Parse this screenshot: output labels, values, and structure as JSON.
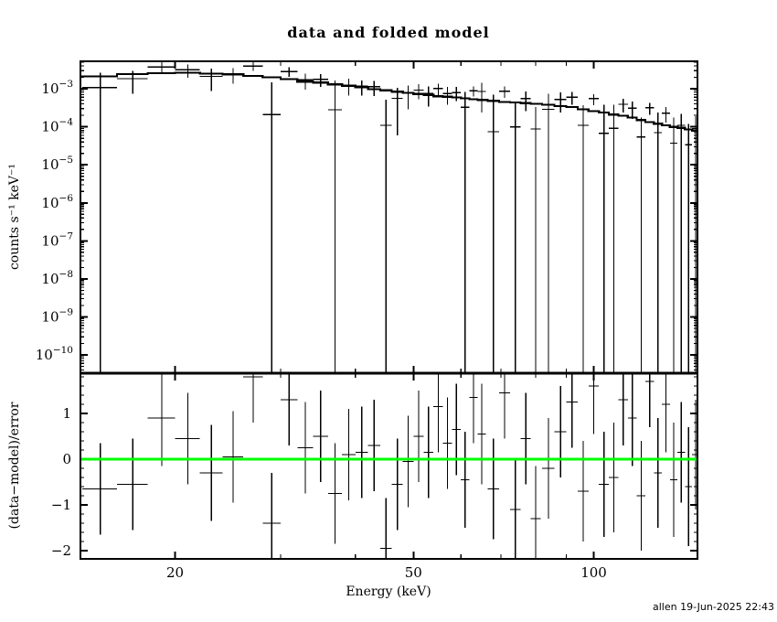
{
  "title": "data and folded model",
  "footer": "allen 19-Jun-2025 22:43",
  "colors": {
    "foreground": "#000000",
    "background": "#ffffff",
    "model_line": "#000000",
    "zero_line": "#00ff00"
  },
  "axes": {
    "x": {
      "label": "Energy (keV)",
      "scale": "log",
      "min": 13.9,
      "max": 149,
      "major_ticks": [
        20,
        50,
        100
      ],
      "tick_labels": [
        "20",
        "50",
        "100"
      ],
      "minor_ticks": [
        20,
        30,
        40,
        50,
        60,
        70,
        80,
        90,
        100
      ]
    },
    "top_y": {
      "label": "counts s⁻¹ keV⁻¹",
      "scale": "log",
      "min": 3.3e-11,
      "max": 0.0053,
      "decade_exponents": [
        -3,
        -4,
        -5,
        -6,
        -7,
        -8,
        -9,
        -10
      ]
    },
    "bottom_y": {
      "label": "(data−model)/error",
      "scale": "linear",
      "min": -2.18,
      "max": 1.88,
      "major_ticks": [
        1,
        0,
        -1,
        -2
      ],
      "tick_labels": [
        "1",
        "0",
        "−1",
        "−2"
      ],
      "minor_step": 0.2
    }
  },
  "chart_data": {
    "type": "scatter",
    "title": "data and folded model",
    "layout": "two stacked panels sharing log energy axis",
    "panels": [
      {
        "name": "spectrum",
        "ylabel": "counts s⁻¹ keV⁻¹",
        "yscale": "log",
        "series": [
          "binned data with x/y error bars",
          "folded model stepped line"
        ]
      },
      {
        "name": "residuals",
        "ylabel": "(data−model)/error",
        "yscale": "linear",
        "series": [
          "residual crosses",
          "zero line (green)"
        ]
      }
    ],
    "columns": [
      "energy_keV",
      "half_width_keV",
      "rate",
      "rate_err",
      "model_rate",
      "residual_sigma",
      "residual_err"
    ],
    "bins": [
      [
        15,
        1,
        0.00108,
        0.00158,
        0.00211,
        -0.65,
        1.0
      ],
      [
        17,
        1,
        0.00184,
        0.0011,
        0.00245,
        -0.55,
        1.0
      ],
      [
        19,
        1,
        0.00377,
        0.0013,
        0.0026,
        0.9,
        1.05
      ],
      [
        21,
        1,
        0.00316,
        0.00118,
        0.00263,
        0.45,
        1.0
      ],
      [
        23,
        1,
        0.00213,
        0.00125,
        0.00251,
        -0.3,
        1.05
      ],
      [
        25,
        1,
        0.00245,
        0.00108,
        0.0024,
        0.05,
        1.0
      ],
      [
        27,
        1,
        0.00398,
        0.00099,
        0.0022,
        1.8,
        1.0
      ],
      [
        29,
        1,
        0.00021,
        0.00128,
        0.002,
        -1.4,
        1.1
      ],
      [
        31,
        1,
        0.00285,
        0.00081,
        0.0018,
        1.3,
        1.0
      ],
      [
        33,
        1,
        0.00174,
        0.00078,
        0.00155,
        0.25,
        1.0
      ],
      [
        35,
        1,
        0.00178,
        0.00065,
        0.00146,
        0.5,
        1.0
      ],
      [
        37,
        1,
        0.00028,
        0.00137,
        0.00131,
        -0.75,
        1.1
      ],
      [
        39,
        1,
        0.00126,
        0.0006,
        0.0012,
        0.1,
        1.0
      ],
      [
        41,
        1,
        0.00117,
        0.0005,
        0.0011,
        0.15,
        1.0
      ],
      [
        43,
        1,
        0.00113,
        0.00049,
        0.00098,
        0.3,
        1.0
      ],
      [
        45,
        1,
        0.00011,
        0.00041,
        0.00091,
        -1.95,
        1.1
      ],
      [
        47,
        1,
        0.00056,
        0.0005,
        0.00084,
        -0.55,
        1.0
      ],
      [
        49,
        1,
        0.00076,
        0.00047,
        0.00078,
        -0.05,
        1.0
      ],
      [
        51,
        1,
        0.00093,
        0.0004,
        0.00073,
        0.5,
        1.0
      ],
      [
        53,
        1,
        0.00075,
        0.00041,
        0.00069,
        0.15,
        1.0
      ],
      [
        55,
        1,
        0.00102,
        0.00033,
        0.00064,
        1.15,
        1.0
      ],
      [
        57,
        1,
        0.00075,
        0.00037,
        0.00062,
        0.35,
        1.0
      ],
      [
        59,
        1,
        0.0008,
        0.00032,
        0.00059,
        0.65,
        1.0
      ],
      [
        61,
        1,
        0.00033,
        0.0005,
        0.00056,
        -0.45,
        1.05
      ],
      [
        63,
        1,
        0.00089,
        0.00027,
        0.00053,
        1.35,
        1.0
      ],
      [
        65,
        1,
        0.00085,
        0.00061,
        0.00051,
        0.55,
        1.1
      ],
      [
        68,
        1.5,
        7.4e-05,
        0.00062,
        0.00048,
        -0.65,
        1.1
      ],
      [
        71,
        1.5,
        0.00086,
        0.00028,
        0.00045,
        1.45,
        1.0
      ],
      [
        74,
        1.5,
        0.0001,
        0.00031,
        0.00044,
        -1.1,
        1.1
      ],
      [
        77,
        1.5,
        0.00055,
        0.00029,
        0.00042,
        0.45,
        1.0
      ],
      [
        80,
        1.5,
        8.8e-05,
        0.00024,
        0.0004,
        -1.3,
        1.15
      ],
      [
        84,
        2,
        0.00029,
        0.00045,
        0.00038,
        -0.2,
        1.1
      ],
      [
        88,
        2,
        0.00052,
        0.00028,
        0.00035,
        0.6,
        1.0
      ],
      [
        92,
        2,
        0.0006,
        0.00022,
        0.00033,
        1.25,
        1.0
      ],
      [
        96,
        2,
        0.00011,
        0.00026,
        0.00029,
        -0.7,
        1.1
      ],
      [
        100,
        2,
        0.00055,
        0.00018,
        0.00026,
        1.6,
        1.05
      ],
      [
        104,
        2,
        6.7e-05,
        0.00031,
        0.00024,
        -0.55,
        1.15
      ],
      [
        108,
        2,
        9.2e-05,
        0.00029,
        0.00021,
        -0.4,
        1.2
      ],
      [
        112,
        2,
        0.00039,
        0.00015,
        0.000195,
        1.3,
        1.0
      ],
      [
        116,
        2,
        0.00031,
        0.00015,
        0.000175,
        0.9,
        1.05
      ],
      [
        120,
        2,
        5.4e-05,
        0.00012,
        0.00015,
        -0.8,
        1.2
      ],
      [
        124,
        2,
        0.00032,
        0.00011,
        0.000133,
        1.7,
        1.0
      ],
      [
        128,
        2,
        7e-05,
        0.00017,
        0.000121,
        -0.3,
        1.2
      ],
      [
        132,
        2,
        0.00023,
        0.0001,
        0.00011,
        1.2,
        1.05
      ],
      [
        136,
        2,
        3.7e-05,
        0.00014,
        0.0001,
        -0.45,
        1.25
      ],
      [
        140,
        2,
        0.00011,
        0.00011,
        9.4e-05,
        0.15,
        1.1
      ],
      [
        144,
        2,
        3.4e-05,
        8.5e-05,
        8.5e-05,
        -0.6,
        1.3
      ],
      [
        148,
        2,
        8.9e-05,
        0.000103,
        7.9e-05,
        0.1,
        1.2
      ]
    ]
  }
}
